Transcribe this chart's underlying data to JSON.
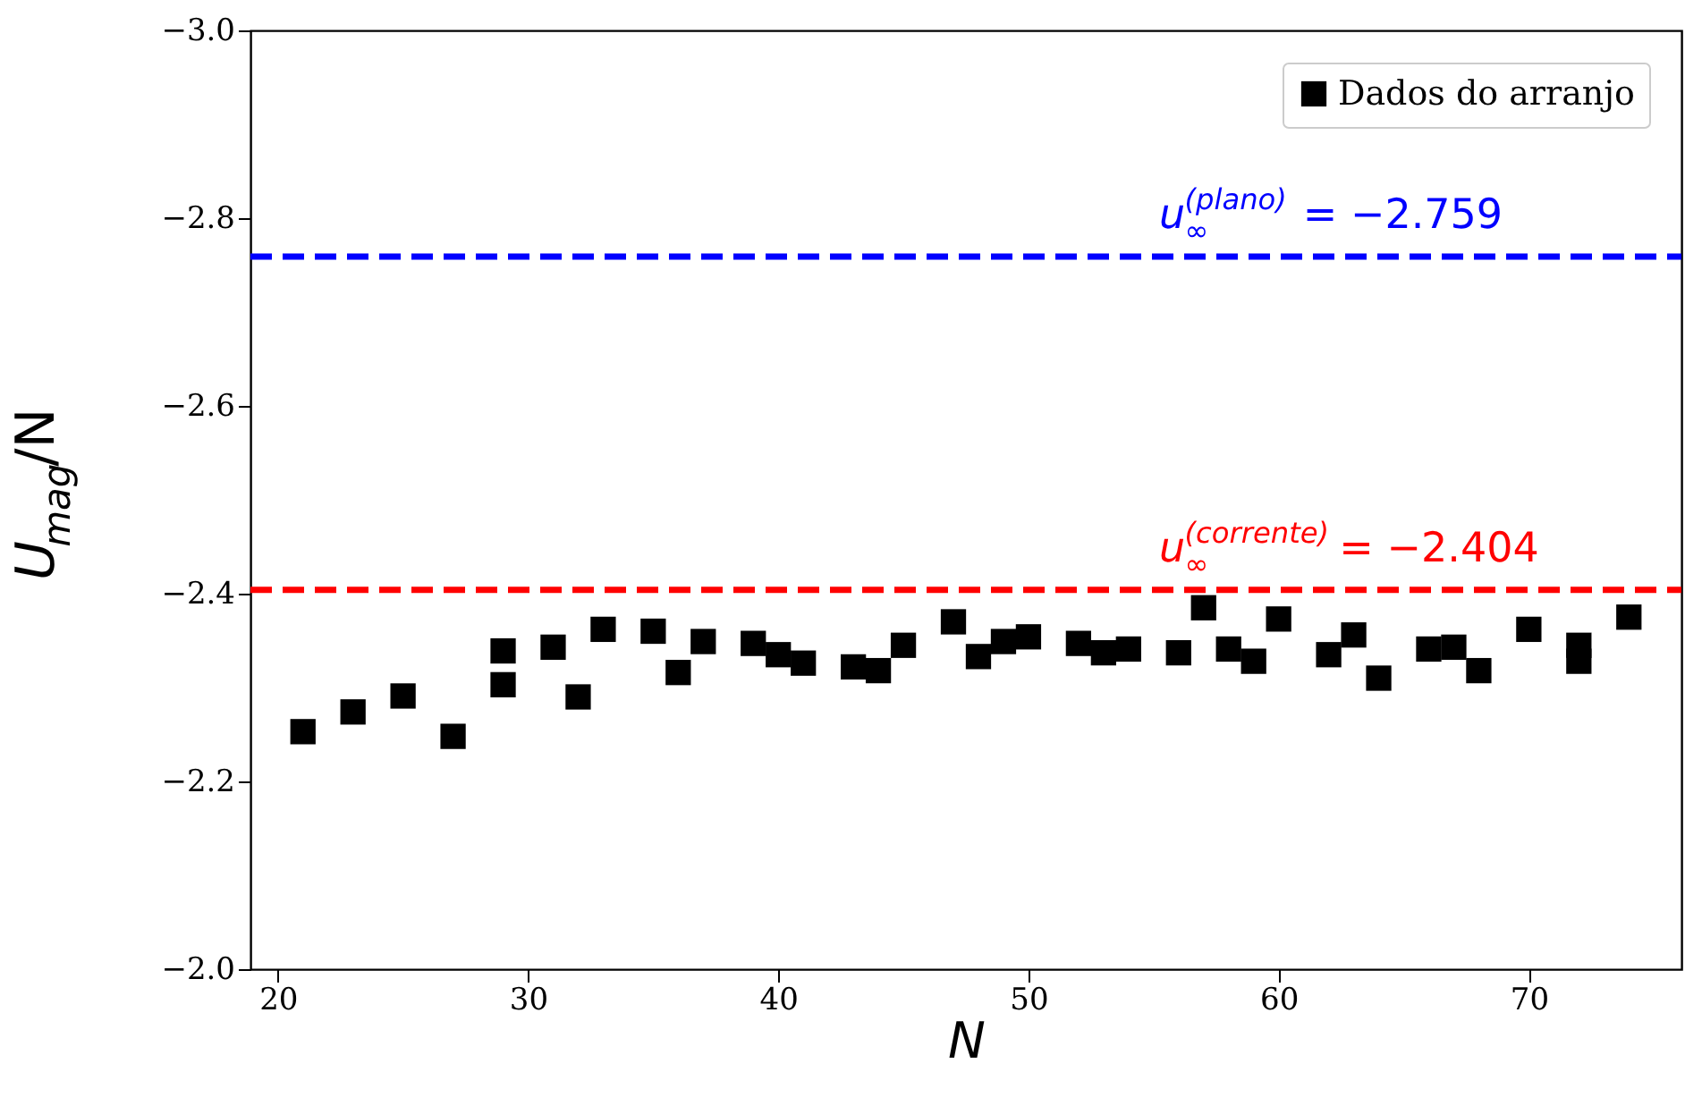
{
  "chart_data": {
    "type": "scatter",
    "xlabel": "N",
    "ylabel": "U$_{mag}$/N",
    "x": [
      21,
      23,
      25,
      27,
      29,
      29,
      31,
      32,
      33,
      35,
      36,
      37,
      39,
      40,
      41,
      43,
      44,
      45,
      47,
      48,
      49,
      50,
      52,
      53,
      54,
      56,
      57,
      58,
      59,
      60,
      62,
      63,
      64,
      66,
      67,
      68,
      70,
      72,
      72,
      74
    ],
    "series": [
      {
        "name": "Dados do arranjo",
        "color": "#000000",
        "values": [
          -2.253,
          -2.274,
          -2.291,
          -2.248,
          -2.339,
          -2.303,
          -2.343,
          -2.29,
          -2.362,
          -2.36,
          -2.316,
          -2.349,
          -2.347,
          -2.335,
          -2.326,
          -2.322,
          -2.318,
          -2.345,
          -2.37,
          -2.333,
          -2.349,
          -2.354,
          -2.347,
          -2.337,
          -2.341,
          -2.337,
          -2.385,
          -2.341,
          -2.328,
          -2.373,
          -2.335,
          -2.356,
          -2.31,
          -2.341,
          -2.343,
          -2.318,
          -2.362,
          -2.345,
          -2.328,
          -2.375
        ]
      }
    ],
    "marker": "square",
    "legend": "top right",
    "grid": false,
    "xlim": [
      18.9,
      76.1
    ],
    "xticks": [
      20,
      30,
      40,
      50,
      60,
      70
    ],
    "ylim": [
      -2.0,
      -3.0
    ],
    "yticks": [
      {
        "value": -3.0,
        "label": "−3.0"
      },
      {
        "value": -2.8,
        "label": "−2.8"
      },
      {
        "value": -2.6,
        "label": "−2.6"
      },
      {
        "value": -2.4,
        "label": "−2.4"
      },
      {
        "value": -2.2,
        "label": "−2.2"
      },
      {
        "value": -2.0,
        "label": "−2.0"
      }
    ],
    "ref_lines": [
      {
        "axis": "y",
        "value": -2.759,
        "label": "u$_{∞}$$^{(plano)}$ = −2.759",
        "color": "#0000ff",
        "line_style": "dashed"
      },
      {
        "axis": "y",
        "value": -2.404,
        "label": "u$_{∞}$$^{(corrente)}$ = −2.404",
        "color": "#ff0000",
        "line_style": "dashed"
      }
    ]
  }
}
